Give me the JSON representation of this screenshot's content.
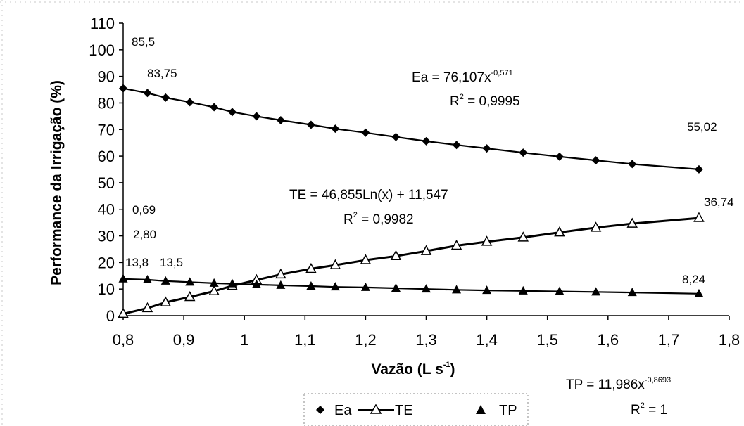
{
  "chart_data": {
    "type": "line",
    "xlabel": "Vazão (L s",
    "xlabel_sup": "-1",
    "xlabel_end": ")",
    "ylabel": "Performance da Irrigação (%)",
    "xlim": [
      0.8,
      1.8
    ],
    "ylim": [
      0,
      110
    ],
    "xticks": [
      "0,8",
      "0,9",
      "1",
      "1,1",
      "1,2",
      "1,3",
      "1,4",
      "1,5",
      "1,6",
      "1,7",
      "1,8"
    ],
    "yticks": [
      "0",
      "10",
      "20",
      "30",
      "40",
      "50",
      "60",
      "70",
      "80",
      "90",
      "100",
      "110"
    ],
    "grid": false,
    "legend_position": "bottom",
    "x": [
      0.8,
      0.84,
      0.87,
      0.91,
      0.95,
      0.98,
      1.02,
      1.06,
      1.11,
      1.15,
      1.2,
      1.25,
      1.3,
      1.35,
      1.4,
      1.46,
      1.52,
      1.58,
      1.64,
      1.75
    ],
    "series": [
      {
        "name": "Ea",
        "marker": "diamond",
        "line": true,
        "values": [
          85.5,
          83.75,
          82.0,
          80.3,
          78.4,
          76.6,
          75.0,
          73.5,
          71.8,
          70.3,
          68.8,
          67.2,
          65.6,
          64.2,
          62.9,
          61.3,
          59.8,
          58.4,
          57.0,
          55.02
        ]
      },
      {
        "name": "TE",
        "marker": "triangle-open",
        "line": true,
        "values": [
          0.69,
          2.8,
          5.0,
          7.0,
          9.2,
          11.2,
          13.4,
          15.5,
          17.6,
          19.0,
          20.9,
          22.4,
          24.3,
          26.3,
          27.8,
          29.4,
          31.3,
          33.1,
          34.6,
          36.74
        ]
      },
      {
        "name": "TP",
        "marker": "triangle-filled",
        "line": true,
        "values": [
          13.8,
          13.5,
          13.0,
          12.6,
          12.2,
          12.0,
          11.7,
          11.4,
          11.1,
          10.8,
          10.6,
          10.3,
          10.0,
          9.7,
          9.5,
          9.3,
          9.1,
          8.9,
          8.7,
          8.24
        ]
      }
    ],
    "point_labels": [
      {
        "text": "85,5",
        "x": 0.8,
        "y": 85.5
      },
      {
        "text": "83,75",
        "x": 0.84,
        "y": 83.75
      },
      {
        "text": "55,02",
        "x": 1.75,
        "y": 55.02
      },
      {
        "text": "0,69",
        "x": 0.8,
        "y": 0.69
      },
      {
        "text": "2,80",
        "x": 0.84,
        "y": 2.8
      },
      {
        "text": "36,74",
        "x": 1.75,
        "y": 36.74
      },
      {
        "text": "13,8",
        "x": 0.8,
        "y": 13.8
      },
      {
        "text": "13,5",
        "x": 0.84,
        "y": 13.5
      },
      {
        "text": "8,24",
        "x": 1.75,
        "y": 8.24
      }
    ],
    "equations": {
      "ea": {
        "main": "Ea = 76,107x",
        "exp": "-0,571",
        "r2_label": "R",
        "r2_sup": "2",
        "r2_value": " = 0,9995"
      },
      "te": {
        "main": "TE = 46,855Ln(x) + 11,547",
        "r2_label": "R",
        "r2_sup": "2",
        "r2_value": " = 0,9982"
      },
      "tp": {
        "main": "TP = 11,986x",
        "exp": "-0,8693",
        "r2_label": "R",
        "r2_sup": "2",
        "r2_value": " = 1"
      }
    },
    "legend": [
      "Ea",
      "TE",
      "TP"
    ]
  }
}
